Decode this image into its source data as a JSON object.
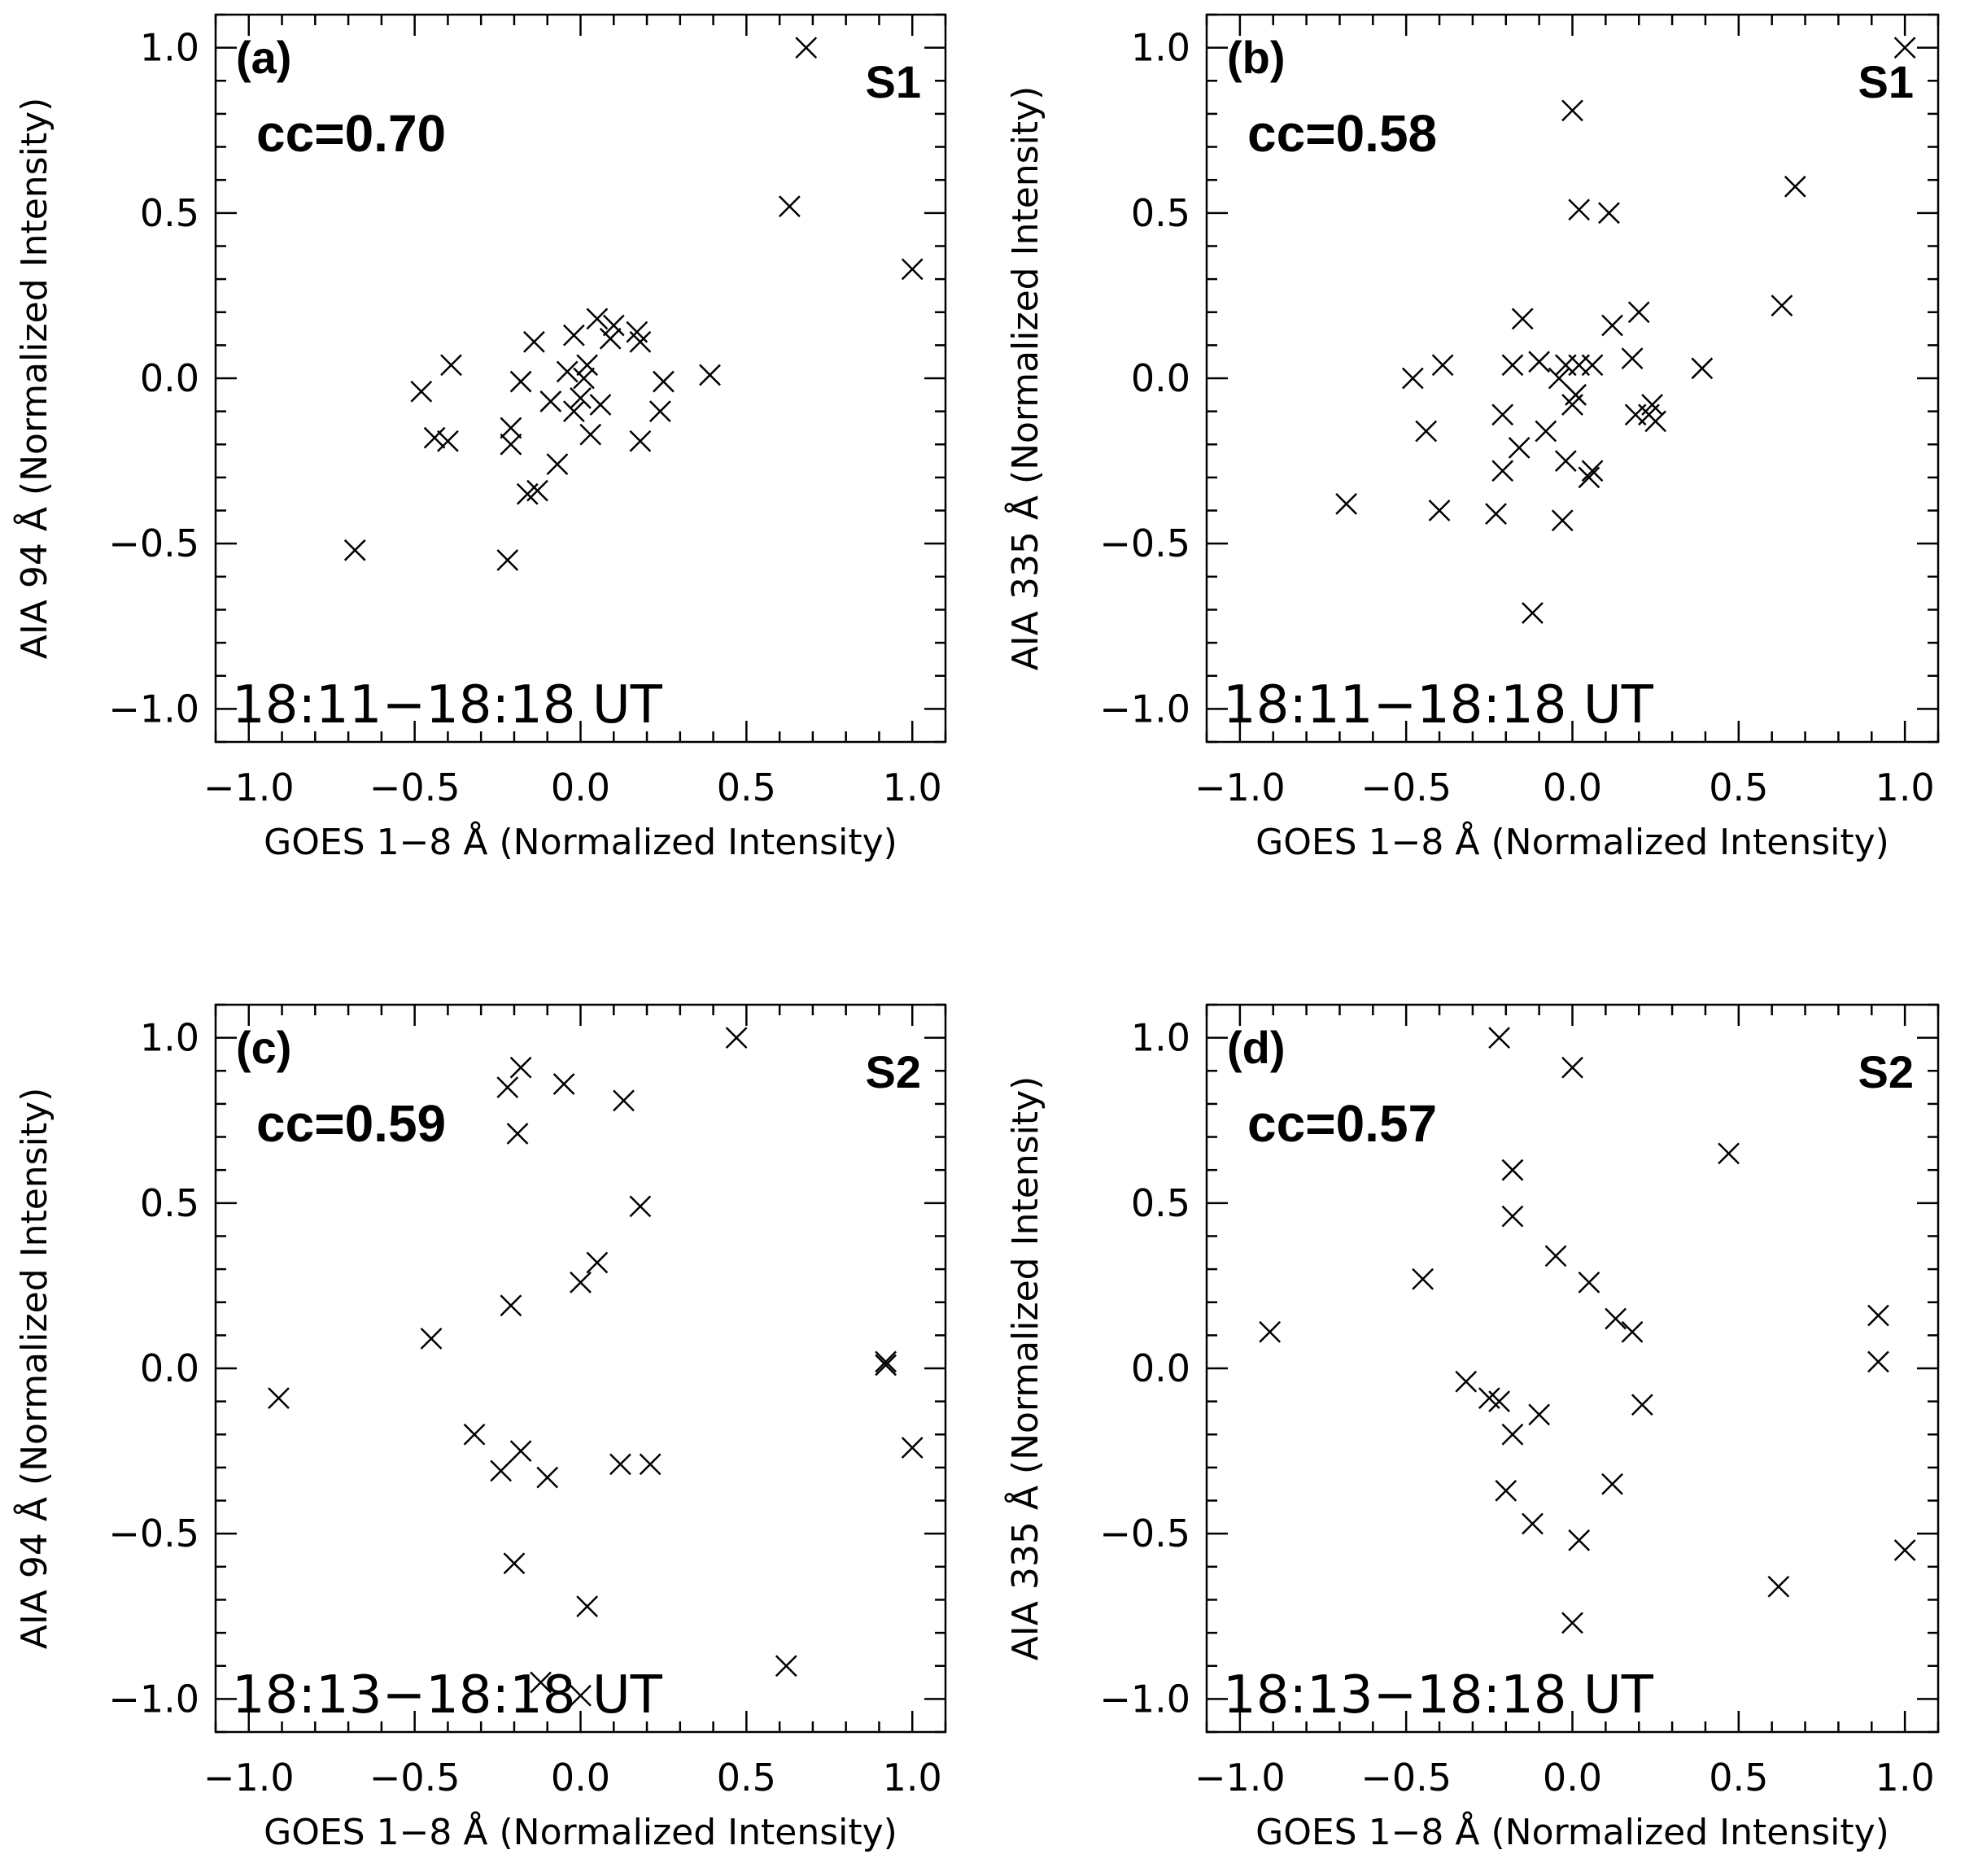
{
  "chart_data": [
    {
      "type": "scatter",
      "panel": "(a)",
      "series_label": "S1",
      "cc": "cc=0.70",
      "time": "18:11−18:18 UT",
      "xlabel": "GOES 1−8 Å (Normalized Intensity)",
      "ylabel": "AIA 94 Å (Normalized Intensity)",
      "xlim": [
        -1.1,
        1.1
      ],
      "ylim": [
        -1.1,
        1.1
      ],
      "xticks": [
        "−1.0",
        "−0.5",
        "0.0",
        "0.5",
        "1.0"
      ],
      "yticks": [
        "−1.0",
        "−0.5",
        "0.0",
        "0.5",
        "1.0"
      ],
      "points": [
        [
          -0.68,
          -0.52
        ],
        [
          -0.48,
          -0.04
        ],
        [
          -0.44,
          -0.18
        ],
        [
          -0.4,
          -0.19
        ],
        [
          -0.39,
          0.04
        ],
        [
          -0.22,
          -0.55
        ],
        [
          -0.21,
          -0.15
        ],
        [
          -0.21,
          -0.2
        ],
        [
          -0.18,
          -0.01
        ],
        [
          -0.16,
          -0.35
        ],
        [
          -0.14,
          0.11
        ],
        [
          -0.13,
          -0.34
        ],
        [
          -0.09,
          -0.07
        ],
        [
          -0.07,
          -0.26
        ],
        [
          -0.04,
          0.02
        ],
        [
          -0.02,
          0.13
        ],
        [
          -0.02,
          -0.1
        ],
        [
          0.0,
          -0.06
        ],
        [
          0.01,
          0.0
        ],
        [
          0.02,
          0.04
        ],
        [
          0.03,
          -0.17
        ],
        [
          0.05,
          0.18
        ],
        [
          0.06,
          -0.08
        ],
        [
          0.09,
          0.12
        ],
        [
          0.1,
          0.16
        ],
        [
          0.17,
          0.14
        ],
        [
          0.18,
          0.11
        ],
        [
          0.18,
          -0.19
        ],
        [
          0.24,
          -0.1
        ],
        [
          0.25,
          -0.01
        ],
        [
          0.39,
          0.01
        ],
        [
          0.63,
          0.52
        ],
        [
          0.68,
          1.0
        ],
        [
          1.0,
          0.33
        ]
      ]
    },
    {
      "type": "scatter",
      "panel": "(b)",
      "series_label": "S1",
      "cc": "cc=0.58",
      "time": "18:11−18:18 UT",
      "xlabel": "GOES 1−8 Å (Normalized Intensity)",
      "ylabel": "AIA 335 Å (Normalized Intensity)",
      "xlim": [
        -1.1,
        1.1
      ],
      "ylim": [
        -1.1,
        1.1
      ],
      "xticks": [
        "−1.0",
        "−0.5",
        "0.0",
        "0.5",
        "1.0"
      ],
      "yticks": [
        "−1.0",
        "−0.5",
        "0.0",
        "0.5",
        "1.0"
      ],
      "points": [
        [
          -0.68,
          -0.38
        ],
        [
          -0.48,
          0.0
        ],
        [
          -0.44,
          -0.16
        ],
        [
          -0.4,
          -0.4
        ],
        [
          -0.39,
          0.04
        ],
        [
          -0.23,
          -0.41
        ],
        [
          -0.21,
          -0.11
        ],
        [
          -0.21,
          -0.28
        ],
        [
          -0.18,
          0.04
        ],
        [
          -0.16,
          -0.21
        ],
        [
          -0.15,
          0.18
        ],
        [
          -0.12,
          -0.71
        ],
        [
          -0.1,
          0.05
        ],
        [
          -0.08,
          -0.16
        ],
        [
          -0.04,
          0.0
        ],
        [
          -0.03,
          -0.43
        ],
        [
          -0.02,
          0.04
        ],
        [
          -0.02,
          -0.25
        ],
        [
          0.0,
          0.81
        ],
        [
          0.0,
          -0.08
        ],
        [
          0.01,
          -0.05
        ],
        [
          0.02,
          0.51
        ],
        [
          0.02,
          0.04
        ],
        [
          0.05,
          -0.3
        ],
        [
          0.06,
          -0.28
        ],
        [
          0.06,
          0.04
        ],
        [
          0.11,
          0.5
        ],
        [
          0.12,
          0.16
        ],
        [
          0.18,
          0.06
        ],
        [
          0.19,
          -0.11
        ],
        [
          0.2,
          0.2
        ],
        [
          0.23,
          -0.11
        ],
        [
          0.24,
          -0.08
        ],
        [
          0.25,
          -0.13
        ],
        [
          0.39,
          0.03
        ],
        [
          0.63,
          0.22
        ],
        [
          0.67,
          0.58
        ],
        [
          1.0,
          1.0
        ]
      ]
    },
    {
      "type": "scatter",
      "panel": "(c)",
      "series_label": "S2",
      "cc": "cc=0.59",
      "time": "18:13−18:18 UT",
      "xlabel": "GOES 1−8 Å (Normalized Intensity)",
      "ylabel": "AIA 94 Å (Normalized Intensity)",
      "xlim": [
        -1.1,
        1.1
      ],
      "ylim": [
        -1.1,
        1.1
      ],
      "xticks": [
        "−1.0",
        "−0.5",
        "0.0",
        "0.5",
        "1.0"
      ],
      "yticks": [
        "−1.0",
        "−0.5",
        "0.0",
        "0.5",
        "1.0"
      ],
      "points": [
        [
          -0.91,
          -0.09
        ],
        [
          -0.45,
          0.09
        ],
        [
          -0.32,
          -0.2
        ],
        [
          -0.24,
          -0.31
        ],
        [
          -0.22,
          0.85
        ],
        [
          -0.21,
          0.19
        ],
        [
          -0.2,
          -0.59
        ],
        [
          -0.19,
          0.71
        ],
        [
          -0.18,
          0.91
        ],
        [
          -0.18,
          -0.25
        ],
        [
          -0.12,
          -0.95
        ],
        [
          -0.1,
          -0.33
        ],
        [
          -0.05,
          0.86
        ],
        [
          0.0,
          0.26
        ],
        [
          0.0,
          -0.99
        ],
        [
          0.02,
          -0.72
        ],
        [
          0.05,
          0.32
        ],
        [
          0.12,
          -0.29
        ],
        [
          0.13,
          0.81
        ],
        [
          0.18,
          0.49
        ],
        [
          0.21,
          -0.29
        ],
        [
          0.47,
          1.0
        ],
        [
          0.62,
          -0.9
        ],
        [
          0.92,
          0.01
        ],
        [
          0.92,
          0.02
        ],
        [
          1.0,
          -0.24
        ]
      ]
    },
    {
      "type": "scatter",
      "panel": "(d)",
      "series_label": "S2",
      "cc": "cc=0.57",
      "time": "18:13−18:18 UT",
      "xlabel": "GOES 1−8 Å (Normalized Intensity)",
      "ylabel": "AIA 335 Å (Normalized Intensity)",
      "xlim": [
        -1.1,
        1.1
      ],
      "ylim": [
        -1.1,
        1.1
      ],
      "xticks": [
        "−1.0",
        "−0.5",
        "0.0",
        "0.5",
        "1.0"
      ],
      "yticks": [
        "−1.0",
        "−0.5",
        "0.0",
        "0.5",
        "1.0"
      ],
      "points": [
        [
          -0.91,
          0.11
        ],
        [
          -0.45,
          0.27
        ],
        [
          -0.32,
          -0.04
        ],
        [
          -0.25,
          -0.09
        ],
        [
          -0.22,
          1.0
        ],
        [
          -0.22,
          -0.1
        ],
        [
          -0.2,
          -0.37
        ],
        [
          -0.18,
          0.6
        ],
        [
          -0.18,
          0.46
        ],
        [
          -0.18,
          -0.2
        ],
        [
          -0.12,
          -0.47
        ],
        [
          -0.1,
          -0.14
        ],
        [
          -0.05,
          0.34
        ],
        [
          0.0,
          0.91
        ],
        [
          0.0,
          -0.77
        ],
        [
          0.02,
          -0.52
        ],
        [
          0.05,
          0.26
        ],
        [
          0.12,
          -0.35
        ],
        [
          0.13,
          0.15
        ],
        [
          0.18,
          0.11
        ],
        [
          0.21,
          -0.11
        ],
        [
          0.47,
          0.65
        ],
        [
          0.62,
          -0.66
        ],
        [
          0.92,
          0.16
        ],
        [
          0.92,
          0.02
        ],
        [
          1.0,
          -0.55
        ]
      ]
    }
  ]
}
